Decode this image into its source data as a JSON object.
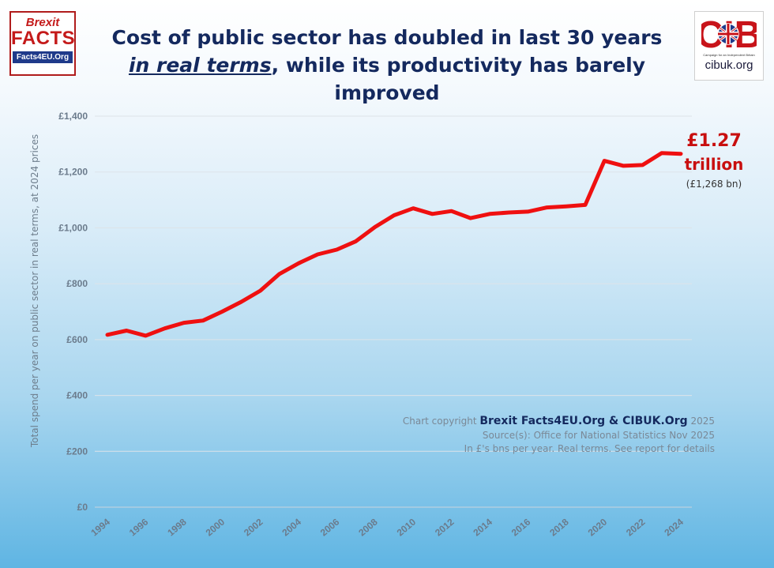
{
  "logos": {
    "left": {
      "line1": "Brexit",
      "line2": "FACTS",
      "line3": "Facts4EU.Org"
    },
    "right": {
      "mark": "CIB",
      "tagline": "Campaign for an Independent Britain",
      "url": "cibuk.org"
    }
  },
  "title": {
    "line1": "Cost of public sector has doubled in last 30 years",
    "line2_emph": "in real terms",
    "line2_rest": ", while its productivity has barely improved"
  },
  "annotation": {
    "value": "£1.27",
    "unit": "trillion",
    "detail": "(£1,268 bn)"
  },
  "notes": {
    "copyright_prefix": "Chart copyright ",
    "copyright_brand": "Brexit Facts4EU.Org & CIBUK.Org",
    "copyright_year": " 2025",
    "source": "Source(s): Office for National Statistics Nov 2025",
    "units": "In £'s bns per year. Real terms. See report for details"
  },
  "colors": {
    "line": "#ef1010",
    "title": "#14295e",
    "accent": "#c80f0f"
  },
  "chart_data": {
    "type": "line",
    "title": "Cost of public sector has doubled in last 30 years in real terms, while its productivity has barely improved",
    "xlabel": "",
    "ylabel": "Total spend per year on public sector in real terms, at 2024 prices",
    "ylim": [
      0,
      1400
    ],
    "yticks": [
      0,
      200,
      400,
      600,
      800,
      1000,
      1200,
      1400
    ],
    "ytick_labels": [
      "£0",
      "£200",
      "£400",
      "£600",
      "£800",
      "£1,000",
      "£1,200",
      "£1,400"
    ],
    "xtick_labels": [
      "1994",
      "1996",
      "1998",
      "2000",
      "2002",
      "2004",
      "2006",
      "2008",
      "2010",
      "2012",
      "2014",
      "2016",
      "2018",
      "2020",
      "2022",
      "2024"
    ],
    "grid": true,
    "legend": "none",
    "x": [
      1994,
      1995,
      1996,
      1997,
      1998,
      1999,
      2000,
      2001,
      2002,
      2003,
      2004,
      2005,
      2006,
      2007,
      2008,
      2009,
      2010,
      2011,
      2012,
      2013,
      2014,
      2015,
      2016,
      2017,
      2018,
      2019,
      2020,
      2021,
      2022,
      2023,
      2024
    ],
    "values": [
      617,
      632,
      614,
      640,
      660,
      668,
      700,
      735,
      775,
      835,
      873,
      905,
      922,
      952,
      1003,
      1045,
      1070,
      1050,
      1060,
      1035,
      1050,
      1055,
      1058,
      1073,
      1077,
      1082,
      1240,
      1222,
      1225,
      1268,
      1265
    ]
  }
}
